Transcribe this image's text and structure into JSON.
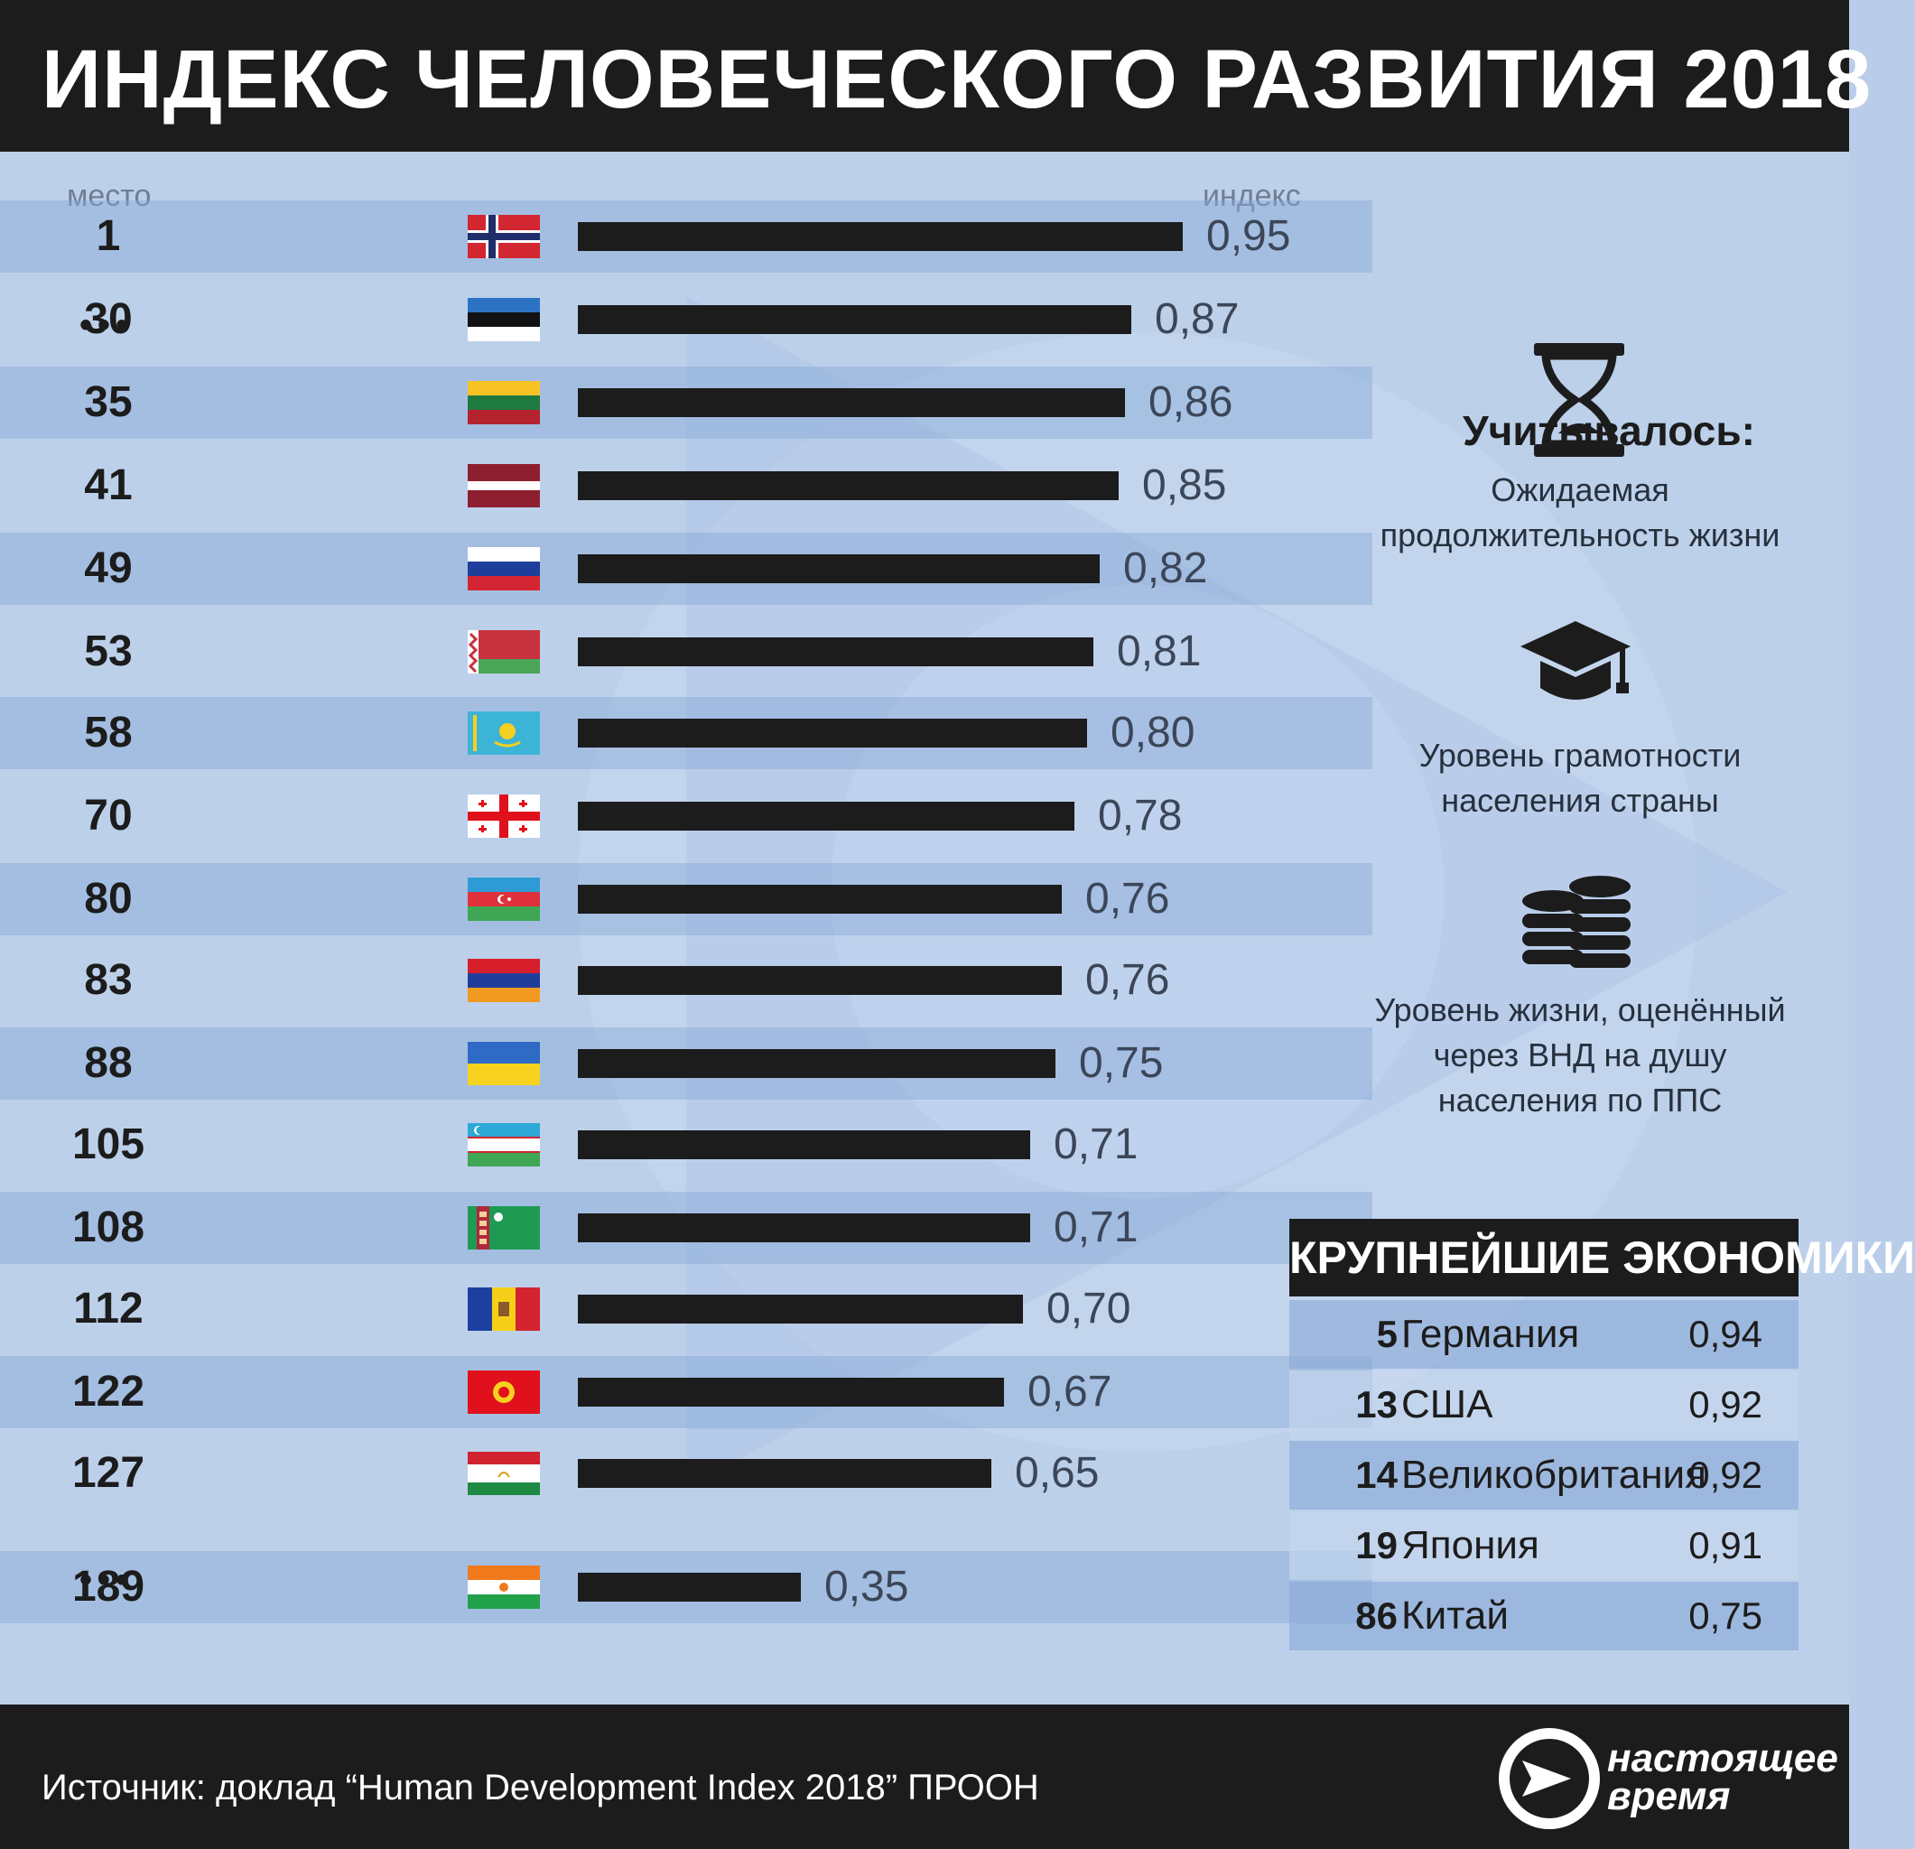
{
  "title": "ИНДЕКС ЧЕЛОВЕЧЕСКОГО РАЗВИТИЯ 2018",
  "columns": {
    "rank": "место",
    "index": "индекс"
  },
  "ellipsis": "•••",
  "chart_data": {
    "type": "bar",
    "title": "ИНДЕКС ЧЕЛОВЕЧЕСКОГО РАЗВИТИЯ 2018",
    "orientation": "horizontal",
    "xlim": [
      0,
      1
    ],
    "rows": [
      {
        "rank": "1",
        "country": "Норвегия",
        "value": 0.95,
        "label": "0,95",
        "flag": "norway"
      },
      {
        "rank": "30",
        "country": "Эстония",
        "value": 0.87,
        "label": "0,87",
        "flag": "estonia"
      },
      {
        "rank": "35",
        "country": "Литва",
        "value": 0.86,
        "label": "0,86",
        "flag": "lithuania"
      },
      {
        "rank": "41",
        "country": "Латвия",
        "value": 0.85,
        "label": "0,85",
        "flag": "latvia"
      },
      {
        "rank": "49",
        "country": "Россия",
        "value": 0.82,
        "label": "0,82",
        "flag": "russia"
      },
      {
        "rank": "53",
        "country": "Беларусь",
        "value": 0.81,
        "label": "0,81",
        "flag": "belarus"
      },
      {
        "rank": "58",
        "country": "Казахстан",
        "value": 0.8,
        "label": "0,80",
        "flag": "kazakhstan"
      },
      {
        "rank": "70",
        "country": "Грузия",
        "value": 0.78,
        "label": "0,78",
        "flag": "georgia"
      },
      {
        "rank": "80",
        "country": "Азербайджан",
        "value": 0.76,
        "label": "0,76",
        "flag": "azerbaijan"
      },
      {
        "rank": "83",
        "country": "Армения",
        "value": 0.76,
        "label": "0,76",
        "flag": "armenia"
      },
      {
        "rank": "88",
        "country": "Украина",
        "value": 0.75,
        "label": "0,75",
        "flag": "ukraine"
      },
      {
        "rank": "105",
        "country": "Узбекистан",
        "value": 0.71,
        "label": "0,71",
        "flag": "uzbekistan"
      },
      {
        "rank": "108",
        "country": "Туркменистан",
        "value": 0.71,
        "label": "0,71",
        "flag": "turkmenistan"
      },
      {
        "rank": "112",
        "country": "Молдова",
        "value": 0.7,
        "label": "0,70",
        "flag": "moldova"
      },
      {
        "rank": "122",
        "country": "Кыргызстан",
        "value": 0.67,
        "label": "0,67",
        "flag": "kyrgyzstan"
      },
      {
        "rank": "127",
        "country": "Таджикистан",
        "value": 0.65,
        "label": "0,65",
        "flag": "tajikistan"
      },
      {
        "rank": "189",
        "country": "Нигер",
        "value": 0.35,
        "label": "0,35",
        "flag": "niger"
      }
    ]
  },
  "factors": {
    "title": "Учитывалось:",
    "items": [
      {
        "icon": "hourglass-icon",
        "lines": [
          "Ожидаемая",
          "продолжительность жизни"
        ]
      },
      {
        "icon": "graduation-cap-icon",
        "lines": [
          "Уровень грамотности",
          "населения страны"
        ]
      },
      {
        "icon": "coins-icon",
        "lines": [
          "Уровень жизни, оценённый",
          "через ВНД на душу",
          "населения по ППС"
        ]
      }
    ]
  },
  "economies": {
    "title": "КРУПНЕЙШИЕ ЭКОНОМИКИ",
    "rows": [
      {
        "rank": "5",
        "country": "Германия",
        "value": "0,94"
      },
      {
        "rank": "13",
        "country": "США",
        "value": "0,92"
      },
      {
        "rank": "14",
        "country": "Великобритания",
        "value": "0,92"
      },
      {
        "rank": "19",
        "country": "Япония",
        "value": "0,91"
      },
      {
        "rank": "86",
        "country": "Китай",
        "value": "0,75"
      }
    ]
  },
  "footer": {
    "source": "Источник: доклад “Human Development Index 2018” ПРООН",
    "logo_line1": "настоящее",
    "logo_line2": "время"
  },
  "colors": {
    "header": "#1c1c1c",
    "background": "#bcd0ea",
    "bar": "#1c1c1c",
    "row_shade": "#9db8e0"
  }
}
